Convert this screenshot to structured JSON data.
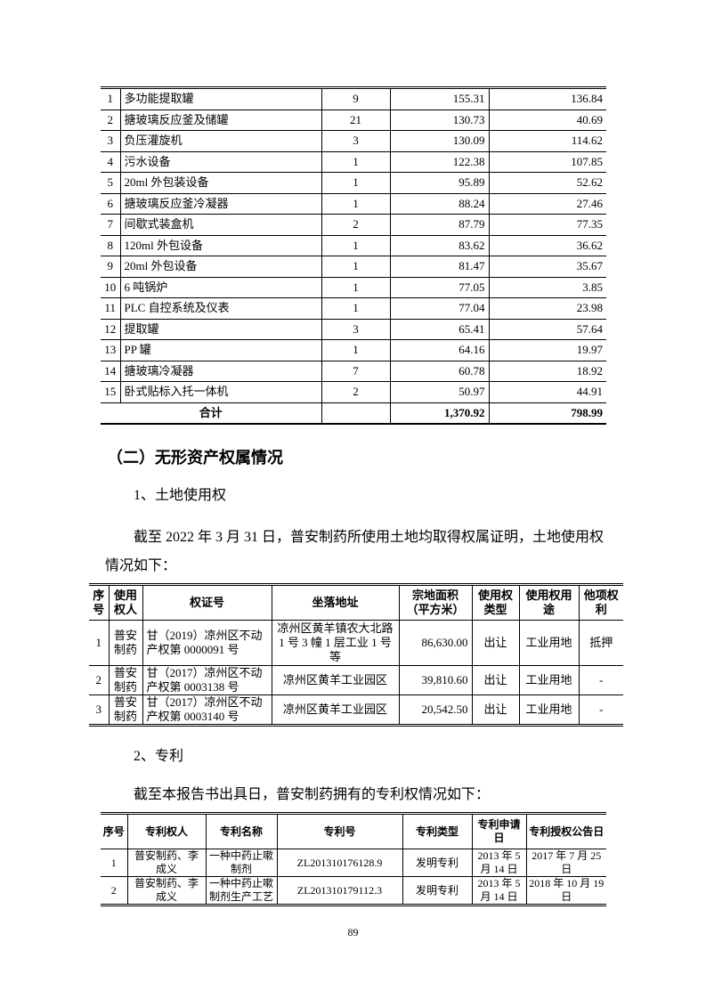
{
  "equipment_table": {
    "rows": [
      [
        "1",
        "多功能提取罐",
        "9",
        "155.31",
        "136.84"
      ],
      [
        "2",
        "搪玻璃反应釜及储罐",
        "21",
        "130.73",
        "40.69"
      ],
      [
        "3",
        "负压灌旋机",
        "3",
        "130.09",
        "114.62"
      ],
      [
        "4",
        "污水设备",
        "1",
        "122.38",
        "107.85"
      ],
      [
        "5",
        "20ml 外包装设备",
        "1",
        "95.89",
        "52.62"
      ],
      [
        "6",
        "搪玻璃反应釜冷凝器",
        "1",
        "88.24",
        "27.46"
      ],
      [
        "7",
        "间歇式装盒机",
        "2",
        "87.79",
        "77.35"
      ],
      [
        "8",
        "120ml 外包设备",
        "1",
        "83.62",
        "36.62"
      ],
      [
        "9",
        "20ml 外包设备",
        "1",
        "81.47",
        "35.67"
      ],
      [
        "10",
        "6 吨锅炉",
        "1",
        "77.05",
        "3.85"
      ],
      [
        "11",
        "PLC 自控系统及仪表",
        "1",
        "77.04",
        "23.98"
      ],
      [
        "12",
        "提取罐",
        "3",
        "65.41",
        "57.64"
      ],
      [
        "13",
        "PP 罐",
        "1",
        "64.16",
        "19.97"
      ],
      [
        "14",
        "搪玻璃冷凝器",
        "7",
        "60.78",
        "18.92"
      ],
      [
        "15",
        "卧式贴标入托一体机",
        "2",
        "50.97",
        "44.91"
      ]
    ],
    "total": {
      "label": "合计",
      "qty": "",
      "v1": "1,370.92",
      "v2": "798.99"
    }
  },
  "section_heading": "（二）无形资产权属情况",
  "land": {
    "subheading": "1、土地使用权",
    "paragraph": "截至 2022 年 3 月 31 日，普安制药所使用土地均取得权属证明，土地使用权情况如下：",
    "headers": [
      "序号",
      "使用权人",
      "权证号",
      "坐落地址",
      "宗地面积（平方米）",
      "使用权类型",
      "使用权用途",
      "他项权利"
    ],
    "rows": [
      [
        "1",
        "普安制药",
        "甘（2019）凉州区不动产权第 0000091 号",
        "凉州区黄羊镇农大北路 1 号 3 幢 1 层工业 1 号等",
        "86,630.00",
        "出让",
        "工业用地",
        "抵押"
      ],
      [
        "2",
        "普安制药",
        "甘（2017）凉州区不动产权第 0003138 号",
        "凉州区黄羊工业园区",
        "39,810.60",
        "出让",
        "工业用地",
        "-"
      ],
      [
        "3",
        "普安制药",
        "甘（2017）凉州区不动产权第 0003140 号",
        "凉州区黄羊工业园区",
        "20,542.50",
        "出让",
        "工业用地",
        "-"
      ]
    ]
  },
  "patent": {
    "subheading": "2、专利",
    "paragraph": "截至本报告书出具日，普安制药拥有的专利权情况如下：",
    "headers": [
      "序号",
      "专利权人",
      "专利名称",
      "专利号",
      "专利类型",
      "专利申请日",
      "专利授权公告日"
    ],
    "rows": [
      [
        "1",
        "普安制药、李成义",
        "一种中药止嗽制剂",
        "ZL201310176128.9",
        "发明专利",
        "2013 年 5 月 14 日",
        "2017 年 7 月 25 日"
      ],
      [
        "2",
        "普安制药、李成义",
        "一种中药止嗽制剂生产工艺",
        "ZL201310179112.3",
        "发明专利",
        "2013 年 5 月 14 日",
        "2018 年 10 月 19 日"
      ]
    ]
  },
  "page_number": "89"
}
